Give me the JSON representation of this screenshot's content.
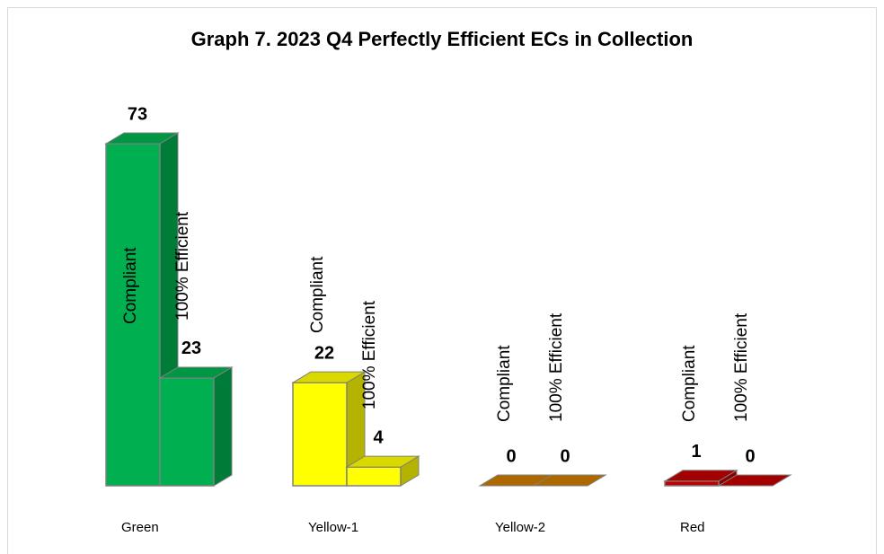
{
  "chart_data": {
    "type": "bar",
    "title": "Graph 7. 2023 Q4 Perfectly Efficient ECs in Collection",
    "categories": [
      "Green",
      "Yellow-1",
      "Yellow-2",
      "Red"
    ],
    "colors": [
      "#00b050",
      "#ffff00",
      "#cc7a00",
      "#c00000"
    ],
    "series": [
      {
        "name": "Compliant",
        "values": [
          73,
          22,
          0,
          1
        ]
      },
      {
        "name": "100% Efficient",
        "values": [
          23,
          4,
          0,
          0
        ]
      }
    ]
  }
}
